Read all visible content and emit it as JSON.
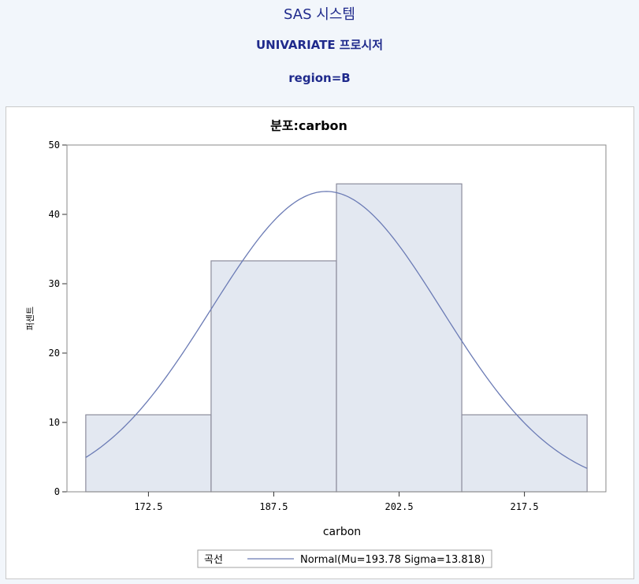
{
  "header": {
    "system_title": "SAS 시스템",
    "procedure_title": "UNIVARIATE 프로시저",
    "by_group": "region=B"
  },
  "colors": {
    "title": "#1f2a8c",
    "bar_fill": "#e3e8f1",
    "bar_stroke": "#8c8c9c",
    "curve": "#6b7bb5"
  },
  "chart_data": {
    "type": "bar",
    "title": "분포:carbon",
    "xlabel": "carbon",
    "ylabel": "퍼센트",
    "categories": [
      "165",
      "180",
      "195",
      "210"
    ],
    "values": [
      11.1,
      33.3,
      44.4,
      11.1
    ],
    "bin_width": 15,
    "bin_starts": [
      165,
      180,
      195,
      210
    ],
    "x_ticks": [
      "172.5",
      "187.5",
      "202.5",
      "217.5"
    ],
    "y_ticks": [
      "0",
      "10",
      "20",
      "30",
      "40",
      "50"
    ],
    "ylim": [
      0,
      50
    ],
    "curve": {
      "name": "Normal(Mu=193.78 Sigma=13.818)",
      "mu": 193.78,
      "sigma": 13.818
    },
    "legend": {
      "title": "곡선",
      "placement": "bottom"
    }
  }
}
